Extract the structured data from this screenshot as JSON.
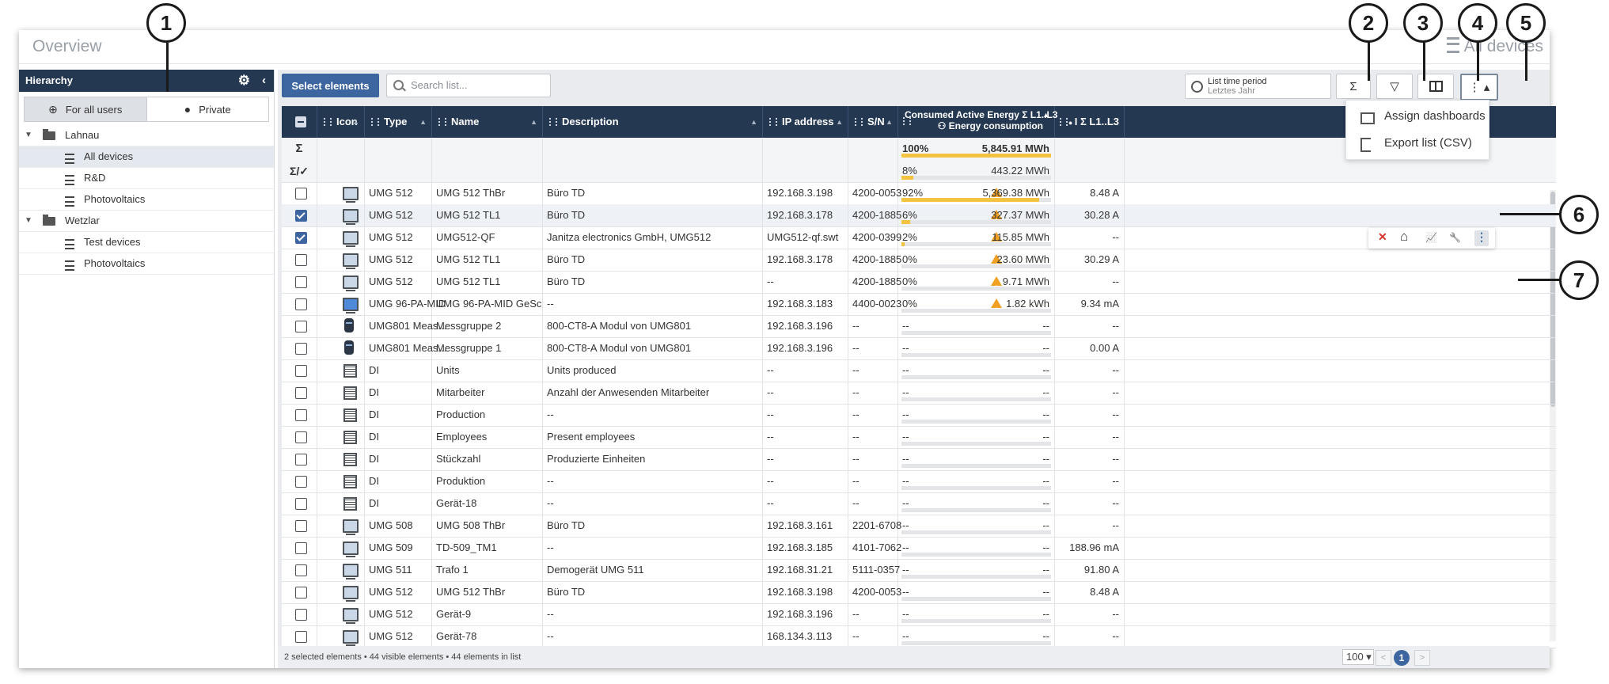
{
  "window": {
    "title": "Overview",
    "title_right": "All devices"
  },
  "sidebar": {
    "title": "Hierarchy",
    "scope": [
      "For all users",
      "Private"
    ],
    "tree": [
      {
        "label": "Lahnau",
        "type": "folder"
      },
      {
        "label": "All devices",
        "type": "list",
        "selected": true
      },
      {
        "label": "R&D",
        "type": "list"
      },
      {
        "label": "Photovoltaics",
        "type": "list"
      },
      {
        "label": "Wetzlar",
        "type": "folder"
      },
      {
        "label": "Test devices",
        "type": "list"
      },
      {
        "label": "Photovoltaics",
        "type": "list"
      }
    ]
  },
  "toolbar": {
    "select_label": "Select elements",
    "search_placeholder": "Search list...",
    "period_title": "List time period",
    "period_value": "Letztes Jahr",
    "sum_glyph": "Σ",
    "filter_glyph": "▽",
    "more_glyph": "⋮ ▴"
  },
  "table": {
    "headers": [
      "Icon",
      "Type",
      "Name",
      "Description",
      "IP address",
      "S/N",
      "Consumed Active Energy Σ L1..L3",
      "I Σ L1..L3"
    ],
    "header_sub": "Energy consumption",
    "sum_label": "Σ",
    "sumsel_label": "Σ/✓",
    "sum_row": {
      "pct": "100%",
      "amount": "5,845.91 MWh",
      "fill": 1.0
    },
    "sumsel_row": {
      "pct": "8%",
      "amount": "443.22 MWh",
      "fill": 0.08
    },
    "rows": [
      {
        "checked": false,
        "icon": "device",
        "type": "UMG 512",
        "name": "UMG 512 ThBr",
        "desc": "Büro TD",
        "ip": "192.168.3.198",
        "sn": "4200-0053",
        "pct": "92%",
        "amount": "5,369.38 MWh",
        "fill": 0.92,
        "warn": true,
        "current": "8.48 A"
      },
      {
        "checked": true,
        "icon": "device",
        "type": "UMG 512",
        "name": "UMG 512 TL1",
        "desc": "Büro TD",
        "ip": "192.168.3.178",
        "sn": "4200-1885",
        "pct": "6%",
        "amount": "327.37 MWh",
        "fill": 0.06,
        "warn": true,
        "current": "30.28 A"
      },
      {
        "checked": true,
        "icon": "device",
        "type": "UMG 512",
        "name": "UMG512-QF",
        "desc": "Janitza electronics GmbH, UMG512",
        "ip": "UMG512-qf.swt",
        "sn": "4200-0399",
        "pct": "2%",
        "amount": "115.85 MWh",
        "fill": 0.02,
        "warn": true,
        "current": "--"
      },
      {
        "checked": false,
        "icon": "device",
        "type": "UMG 512",
        "name": "UMG 512 TL1",
        "desc": "Büro TD",
        "ip": "192.168.3.178",
        "sn": "4200-1885",
        "pct": "0%",
        "amount": "23.60 MWh",
        "fill": 0,
        "warn": true,
        "current": "30.29 A"
      },
      {
        "checked": false,
        "icon": "device",
        "type": "UMG 512",
        "name": "UMG 512 TL1",
        "desc": "Büro TD",
        "ip": "--",
        "sn": "4200-1885",
        "pct": "0%",
        "amount": "9.71 MWh",
        "fill": 0,
        "warn": true,
        "current": "--"
      },
      {
        "checked": false,
        "icon": "device-blue",
        "type": "UMG 96-PA-MID",
        "name": "UMG 96-PA-MID GeSc",
        "desc": "--",
        "ip": "192.168.3.183",
        "sn": "4400-0023",
        "pct": "0%",
        "amount": "1.82 kWh",
        "fill": 0,
        "warn": true,
        "current": "9.34 mA"
      },
      {
        "checked": false,
        "icon": "cylinder",
        "type": "UMG801 Meas...",
        "name": "Messgruppe 2",
        "desc": "800-CT8-A Modul von UMG801",
        "ip": "192.168.3.196",
        "sn": "--",
        "pct": "--",
        "amount": "--",
        "fill": 0,
        "warn": false,
        "current": "--"
      },
      {
        "checked": false,
        "icon": "cylinder",
        "type": "UMG801 Meas...",
        "name": "Messgruppe 1",
        "desc": "800-CT8-A Modul von UMG801",
        "ip": "192.168.3.196",
        "sn": "--",
        "pct": "--",
        "amount": "--",
        "fill": 0,
        "warn": false,
        "current": "0.00 A"
      },
      {
        "checked": false,
        "icon": "digital",
        "type": "DI",
        "name": "Units",
        "desc": "Units produced",
        "ip": "--",
        "sn": "--",
        "pct": "--",
        "amount": "--",
        "fill": 0,
        "warn": false,
        "current": "--"
      },
      {
        "checked": false,
        "icon": "digital",
        "type": "DI",
        "name": "Mitarbeiter",
        "desc": "Anzahl der Anwesenden Mitarbeiter",
        "ip": "--",
        "sn": "--",
        "pct": "--",
        "amount": "--",
        "fill": 0,
        "warn": false,
        "current": "--"
      },
      {
        "checked": false,
        "icon": "digital",
        "type": "DI",
        "name": "Production",
        "desc": "--",
        "ip": "--",
        "sn": "--",
        "pct": "--",
        "amount": "--",
        "fill": 0,
        "warn": false,
        "current": "--"
      },
      {
        "checked": false,
        "icon": "digital",
        "type": "DI",
        "name": "Employees",
        "desc": "Present employees",
        "ip": "--",
        "sn": "--",
        "pct": "--",
        "amount": "--",
        "fill": 0,
        "warn": false,
        "current": "--"
      },
      {
        "checked": false,
        "icon": "digital",
        "type": "DI",
        "name": "Stückzahl",
        "desc": "Produzierte Einheiten",
        "ip": "--",
        "sn": "--",
        "pct": "--",
        "amount": "--",
        "fill": 0,
        "warn": false,
        "current": "--"
      },
      {
        "checked": false,
        "icon": "digital",
        "type": "DI",
        "name": "Produktion",
        "desc": "--",
        "ip": "--",
        "sn": "--",
        "pct": "--",
        "amount": "--",
        "fill": 0,
        "warn": false,
        "current": "--"
      },
      {
        "checked": false,
        "icon": "digital",
        "type": "DI",
        "name": "Gerät-18",
        "desc": "--",
        "ip": "--",
        "sn": "--",
        "pct": "--",
        "amount": "--",
        "fill": 0,
        "warn": false,
        "current": "--"
      },
      {
        "checked": false,
        "icon": "device",
        "type": "UMG 508",
        "name": "UMG 508 ThBr",
        "desc": "Büro TD",
        "ip": "192.168.3.161",
        "sn": "2201-6708",
        "pct": "--",
        "amount": "--",
        "fill": 0,
        "warn": false,
        "current": "--"
      },
      {
        "checked": false,
        "icon": "device",
        "type": "UMG 509",
        "name": "TD-509_TM1",
        "desc": "--",
        "ip": "192.168.3.185",
        "sn": "4101-7062",
        "pct": "--",
        "amount": "--",
        "fill": 0,
        "warn": false,
        "current": "188.96 mA"
      },
      {
        "checked": false,
        "icon": "device",
        "type": "UMG 511",
        "name": "Trafo 1",
        "desc": "Demogerät UMG 511",
        "ip": "192.168.31.21",
        "sn": "5111-0357",
        "pct": "--",
        "amount": "--",
        "fill": 0,
        "warn": false,
        "current": "91.80 A"
      },
      {
        "checked": false,
        "icon": "device",
        "type": "UMG 512",
        "name": "UMG 512 ThBr",
        "desc": "Büro TD",
        "ip": "192.168.3.198",
        "sn": "4200-0053",
        "pct": "--",
        "amount": "--",
        "fill": 0,
        "warn": false,
        "current": "8.48 A"
      },
      {
        "checked": false,
        "icon": "device",
        "type": "UMG 512",
        "name": "Gerät-9",
        "desc": "--",
        "ip": "192.168.3.196",
        "sn": "--",
        "pct": "--",
        "amount": "--",
        "fill": 0,
        "warn": false,
        "current": "--"
      },
      {
        "checked": false,
        "icon": "device",
        "type": "UMG 512",
        "name": "Gerät-78",
        "desc": "--",
        "ip": "168.134.3.113",
        "sn": "--",
        "pct": "--",
        "amount": "--",
        "fill": 0,
        "warn": false,
        "current": "--"
      }
    ]
  },
  "footer": {
    "status": "2 selected elements  •  44 visible elements  •  44 elements in list",
    "page_size": "100 ▾",
    "page": "1",
    "prev": "<",
    "next": ">"
  },
  "dropdown": {
    "items": [
      "Assign dashboards",
      "Export list (CSV)"
    ]
  },
  "row_actions": {
    "close": "✕",
    "home": "⌂",
    "chart": "📈",
    "wrench": "🔧",
    "more": "⋮"
  },
  "callouts": [
    "1",
    "2",
    "3",
    "4",
    "5",
    "6",
    "7"
  ],
  "colors": {
    "header": "#243852",
    "accent": "#3d65a0",
    "bar": "#f5c342",
    "warning": "#f0a022"
  }
}
